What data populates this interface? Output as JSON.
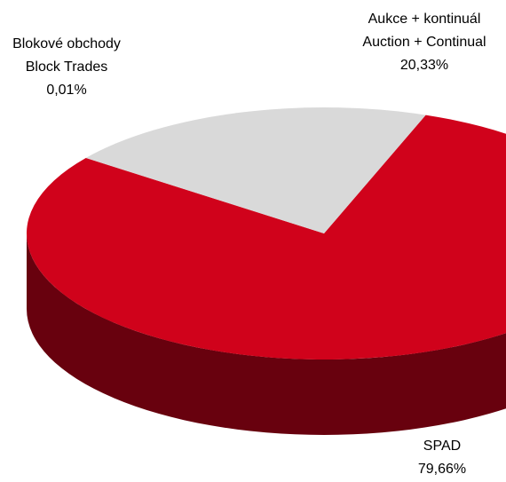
{
  "chart_data": {
    "type": "pie3d",
    "categories": [
      [
        "SPAD"
      ],
      [
        "Blokové obchody",
        "Block Trades"
      ],
      [
        "Aukce + kontinuál",
        "Auction + Continual"
      ]
    ],
    "values": [
      79.66,
      0.01,
      20.33
    ],
    "value_labels": [
      "79,66%",
      "0,01%",
      "20,33%"
    ],
    "colors": [
      "#d0021b",
      "#d0021b",
      "#d9d9d9"
    ]
  }
}
